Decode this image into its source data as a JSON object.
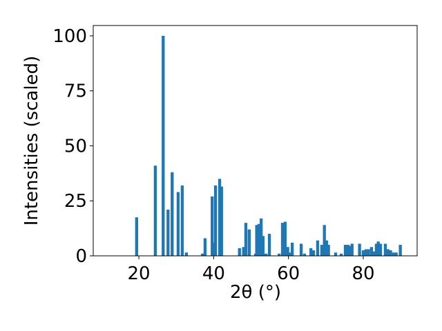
{
  "chart_data": {
    "type": "bar",
    "x_label": "2θ (°)",
    "y_label": "Intensities (scaled)",
    "color": "#1f77b4",
    "x": [
      19.4,
      24.4,
      26.5,
      27.8,
      28.9,
      30.5,
      31.6,
      32.7,
      37.0,
      37.7,
      39.6,
      39.9,
      40.5,
      41.6,
      42.1,
      46.9,
      48.0,
      48.6,
      49.5,
      51.2,
      51.5,
      52.1,
      52.7,
      53.2,
      54.0,
      54.9,
      57.5,
      58.4,
      59.1,
      59.8,
      60.4,
      61.0,
      63.4,
      64.3,
      66.0,
      66.7,
      67.8,
      68.9,
      69.6,
      70.2,
      70.7,
      72.6,
      74.1,
      75.2,
      75.9,
      76.5,
      77.0,
      79.0,
      80.0,
      80.7,
      81.4,
      82.2,
      82.9,
      83.5,
      84.0,
      84.6,
      85.9,
      86.6,
      87.3,
      88.1,
      88.8,
      89.9
    ],
    "values": [
      17.5,
      41,
      100,
      21,
      38,
      29,
      32,
      1.5,
      1,
      8,
      27,
      6,
      32,
      35,
      31.5,
      3.5,
      4,
      15,
      12,
      1,
      14,
      14.5,
      17,
      9,
      1,
      10,
      1,
      15,
      15.5,
      4,
      1.5,
      6,
      5.5,
      1,
      3.5,
      2.5,
      7,
      5,
      14,
      7,
      5,
      1.5,
      1,
      5,
      5,
      4.5,
      5.5,
      5.5,
      2.5,
      3,
      3,
      4,
      2,
      5.5,
      6.5,
      5.5,
      5.5,
      3,
      2.5,
      1.5,
      1.5,
      5
    ],
    "xlim": [
      7.8,
      94.4
    ],
    "ylim": [
      0,
      104.7
    ],
    "xticks": [
      20,
      40,
      60,
      80
    ],
    "yticks": [
      0,
      25,
      50,
      75,
      100
    ]
  }
}
